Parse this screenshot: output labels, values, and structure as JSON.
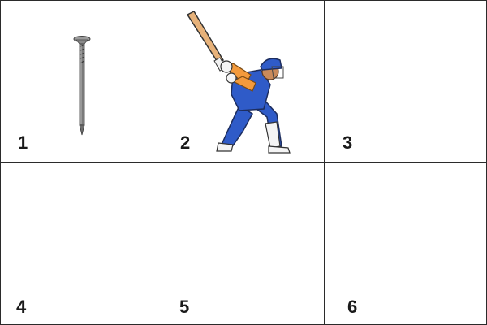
{
  "cells": [
    {
      "label": "1",
      "picture": "nail"
    },
    {
      "label": "2",
      "picture": "cricket-batsman"
    },
    {
      "label": "3",
      "picture": ""
    },
    {
      "label": "4",
      "picture": ""
    },
    {
      "label": "5",
      "picture": ""
    },
    {
      "label": "6",
      "picture": ""
    }
  ],
  "colors": {
    "grid_line": "#2b2b2b",
    "number_text": "#1a1a1a",
    "uniform_blue": "#2f5bc8",
    "uniform_orange": "#f39a3c",
    "bat_tan": "#e7b27a",
    "nail_gray": "#7a7a7a"
  }
}
